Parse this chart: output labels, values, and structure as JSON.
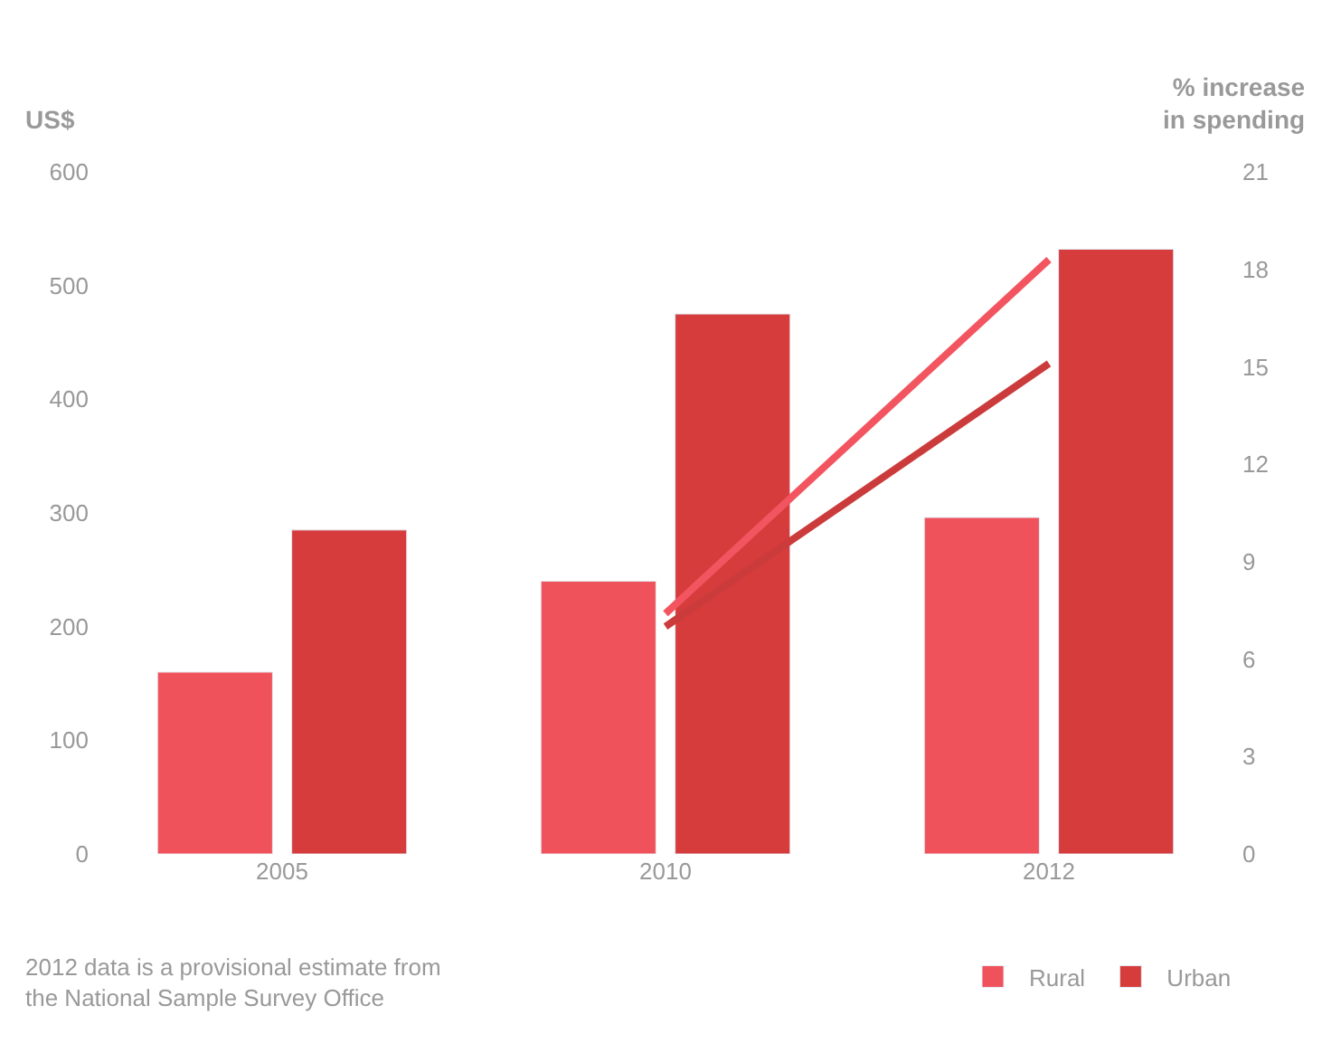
{
  "chart_data": {
    "type": "bar",
    "categories": [
      "2005",
      "2010",
      "2012"
    ],
    "ylabel": "US$",
    "y2label": "% increase in spending",
    "ylim": [
      0,
      600
    ],
    "yticks": [
      0,
      100,
      200,
      300,
      400,
      500,
      600
    ],
    "y2lim": [
      0,
      21
    ],
    "y2ticks": [
      0,
      3,
      6,
      9,
      12,
      15,
      18,
      21
    ],
    "series": [
      {
        "name": "Rural",
        "color": "#f0525c",
        "values": [
          160,
          240,
          296
        ]
      },
      {
        "name": "Urban",
        "color": "#d63c3c",
        "values": [
          285,
          475,
          532
        ]
      },
      {
        "type": "line",
        "axis": "y2",
        "color": "#f25560",
        "values": [
          null,
          7.4,
          18.3
        ]
      },
      {
        "type": "line",
        "axis": "y2",
        "color": "#cc3b3b",
        "values": [
          null,
          7.0,
          15.1
        ]
      }
    ],
    "annotations": [
      "2012 data is a provisional estimate from the National Sample Survey Office"
    ],
    "legend": "bottom right"
  }
}
